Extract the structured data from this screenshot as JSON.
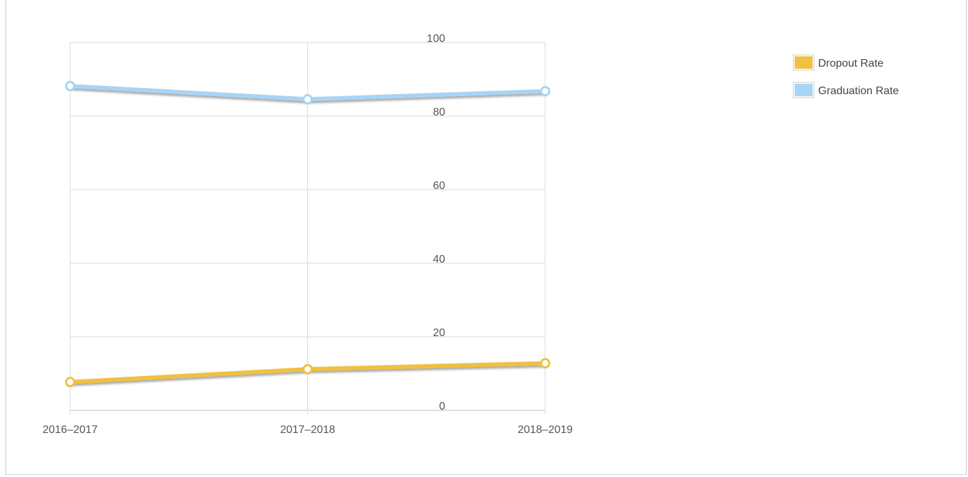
{
  "chart_data": {
    "type": "line",
    "categories": [
      "2016–2017",
      "2017–2018",
      "2018–2019"
    ],
    "series": [
      {
        "name": "Dropout Rate",
        "values": [
          7.7,
          11.2,
          12.8
        ],
        "color": "#f0c040"
      },
      {
        "name": "Graduation Rate",
        "values": [
          88.2,
          84.6,
          86.8
        ],
        "color": "#a8d4f5"
      }
    ],
    "ylim": [
      0,
      100
    ],
    "yticks": [
      0,
      20,
      40,
      60,
      80,
      100
    ],
    "grid": true,
    "legend_position": "top-right"
  }
}
